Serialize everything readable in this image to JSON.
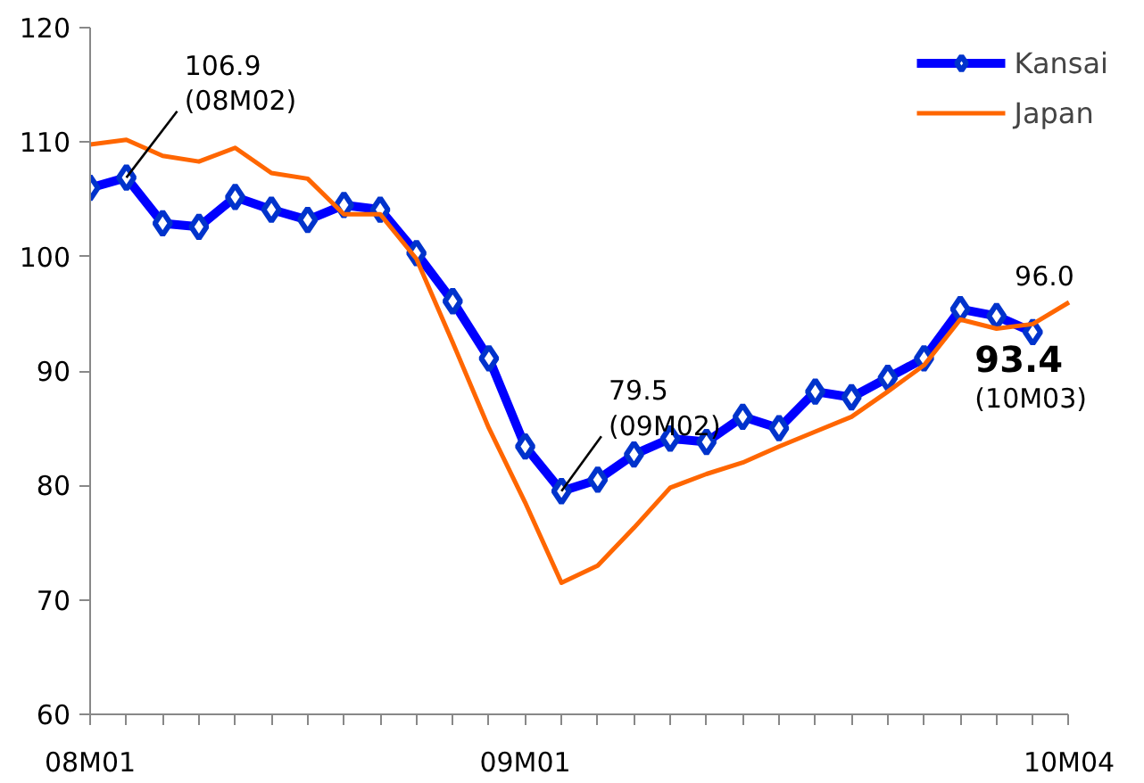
{
  "chart_data": {
    "type": "line",
    "categories": [
      "08M01",
      null,
      null,
      null,
      null,
      null,
      null,
      null,
      null,
      null,
      null,
      null,
      "09M01",
      null,
      null,
      null,
      null,
      null,
      null,
      null,
      null,
      null,
      null,
      null,
      null,
      null,
      null,
      "10M04"
    ],
    "series": [
      {
        "name": "Kansai",
        "color": "#0000ff",
        "marker": "diamond",
        "values": [
          106.0,
          106.9,
          102.9,
          102.6,
          105.2,
          104.1,
          103.2,
          104.5,
          104.1,
          100.3,
          96.1,
          91.1,
          83.4,
          79.5,
          80.5,
          82.7,
          84.1,
          83.8,
          86.0,
          85.0,
          88.2,
          87.7,
          89.4,
          91.1,
          95.4,
          94.8,
          93.4,
          null
        ]
      },
      {
        "name": "Japan",
        "color": "#ff6600",
        "marker": "none",
        "values": [
          109.8,
          110.2,
          108.8,
          108.3,
          109.5,
          107.3,
          106.8,
          103.7,
          103.7,
          99.8,
          92.5,
          85.0,
          78.5,
          71.5,
          73.0,
          76.3,
          79.8,
          81.0,
          82.0,
          83.4,
          84.7,
          86.0,
          88.2,
          90.5,
          94.5,
          93.7,
          94.1,
          96.0
        ]
      }
    ],
    "ylim": [
      60,
      120
    ],
    "yticks": [
      60,
      70,
      80,
      90,
      100,
      110,
      120
    ],
    "grid": false,
    "legend": "top right",
    "line_style": "solid",
    "annotations": [
      {
        "text": "106.9\n(08M02)",
        "y": 106.9
      },
      {
        "text": "79.5\n(09M02)",
        "y": 79.5
      },
      {
        "text": "96.0",
        "x": "10M04",
        "y": 96.0
      },
      {
        "text": "93.4\n(10M03)",
        "y": 93.4
      }
    ]
  }
}
